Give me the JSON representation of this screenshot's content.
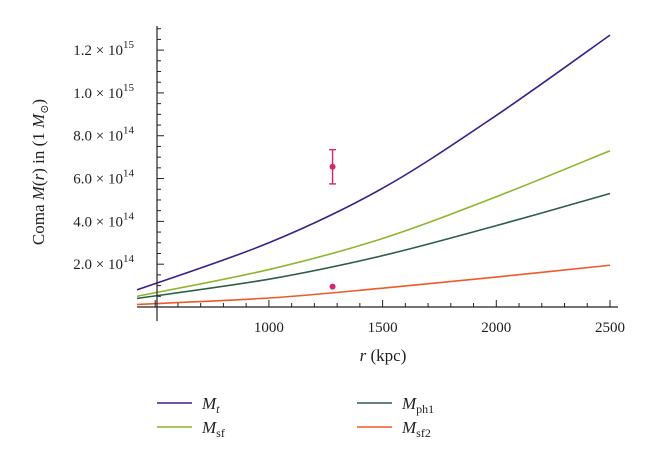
{
  "chart_data": {
    "type": "line",
    "xlabel": "r (kpc)",
    "ylabel": "Coma M(r) in (1 M⊙)",
    "xlim": [
      420,
      2500
    ],
    "ylim": [
      0,
      1350000000000000.0
    ],
    "x_ticks": [
      {
        "value": 1000,
        "label": "1000"
      },
      {
        "value": 1500,
        "label": "1500"
      },
      {
        "value": 2000,
        "label": "2000"
      },
      {
        "value": 2500,
        "label": "2500"
      }
    ],
    "y_ticks": [
      {
        "value": 200000000000000.0,
        "mantissa": "2.0",
        "exp": "14"
      },
      {
        "value": 400000000000000.0,
        "mantissa": "4.0",
        "exp": "14"
      },
      {
        "value": 600000000000000.0,
        "mantissa": "6.0",
        "exp": "14"
      },
      {
        "value": 800000000000000.0,
        "mantissa": "8.0",
        "exp": "14"
      },
      {
        "value": 1000000000000000.0,
        "mantissa": "1.0",
        "exp": "15"
      },
      {
        "value": 1200000000000000.0,
        "mantissa": "1.2",
        "exp": "15"
      }
    ],
    "series": [
      {
        "name": "Mt",
        "label_main": "M",
        "label_sub": "t",
        "sub_italic": true,
        "color": "#3b1e8c",
        "x": [
          420,
          1000,
          1500,
          2000,
          2500
        ],
        "y": [
          80000000000000.0,
          300000000000000.0,
          555000000000000.0,
          895000000000000.0,
          1270000000000000.0
        ]
      },
      {
        "name": "Msf",
        "label_main": "M",
        "label_sub": "sf",
        "sub_italic": false,
        "color": "#8db52d",
        "x": [
          420,
          1000,
          1500,
          2000,
          2500
        ],
        "y": [
          50000000000000.0,
          175000000000000.0,
          320000000000000.0,
          515000000000000.0,
          730000000000000.0
        ]
      },
      {
        "name": "Mph1",
        "label_main": "M",
        "label_sub": "ph1",
        "sub_italic": false,
        "color": "#2e5e46",
        "x": [
          420,
          1000,
          1500,
          2000,
          2500
        ],
        "y": [
          40000000000000.0,
          130000000000000.0,
          240000000000000.0,
          380000000000000.0,
          530000000000000.0
        ]
      },
      {
        "name": "Msf2",
        "label_main": "M",
        "label_sub": "sf2",
        "sub_italic": false,
        "color": "#ef5a2a",
        "x": [
          420,
          1000,
          1500,
          2000,
          2500
        ],
        "y": [
          12000000000000.0,
          42000000000000.0,
          88000000000000.0,
          140000000000000.0,
          195000000000000.0
        ]
      }
    ],
    "points": [
      {
        "x": 1280,
        "y": 655000000000000.0,
        "yerr_low": 575000000000000.0,
        "yerr_high": 735000000000000.0,
        "color": "#d6266e"
      },
      {
        "x": 1280,
        "y": 95000000000000.0,
        "color": "#d6266e"
      }
    ],
    "legend_position": "bottom",
    "grid": false
  }
}
